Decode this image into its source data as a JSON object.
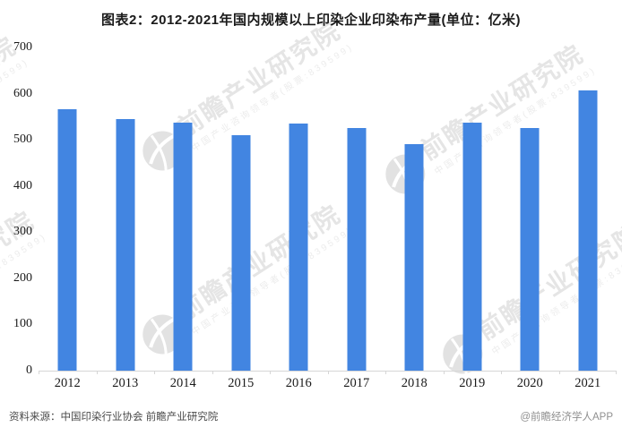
{
  "title": "图表2：2012-2021年国内规模以上印染企业印染布产量(单位：亿米)",
  "chart_data": {
    "type": "bar",
    "categories": [
      "2012",
      "2013",
      "2014",
      "2015",
      "2016",
      "2017",
      "2018",
      "2019",
      "2020",
      "2021"
    ],
    "values": [
      567,
      545,
      538,
      510,
      535,
      526,
      491,
      538,
      526,
      606
    ],
    "title": "图表2：2012-2021年国内规模以上印染企业印染布产量(单位：亿米)",
    "xlabel": "",
    "ylabel": "",
    "ylim": [
      0,
      700
    ],
    "yticks": [
      0,
      100,
      200,
      300,
      400,
      500,
      600,
      700
    ],
    "grid": false,
    "legend": null,
    "bar_color": "#4285E1",
    "axis_color": "#d6d6d6"
  },
  "watermark": {
    "brand": "前瞻产业研究院",
    "tagline": "中国产业咨询领导者(股票:839599)"
  },
  "footer": {
    "source": "资料来源：中国印染行业协会 前瞻产业研究院",
    "credit": "@前瞻经济学人APP"
  }
}
